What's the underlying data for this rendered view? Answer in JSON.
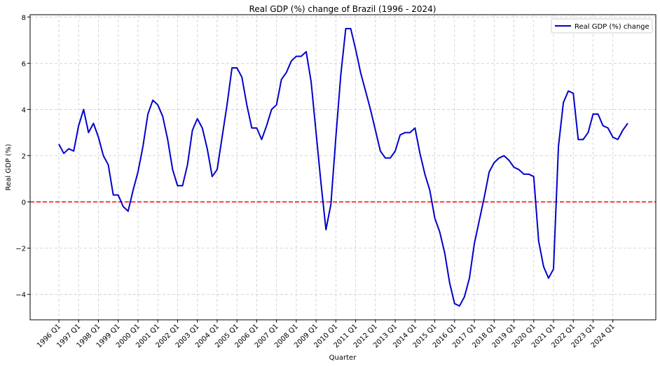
{
  "chart_data": {
    "type": "line",
    "title": "Real GDP (%) change of Brazil (1996 - 2024)",
    "xlabel": "Quarter",
    "ylabel": "Real GDP (%)",
    "ylim": [
      -5.1,
      8.1
    ],
    "yticks": [
      -4,
      -2,
      0,
      2,
      4,
      6,
      8
    ],
    "grid": true,
    "legend_position": "top-right",
    "x_tick_labels": [
      "1996 Q1",
      "1997 Q1",
      "1998 Q1",
      "1999 Q1",
      "2000 Q1",
      "2001 Q1",
      "2002 Q1",
      "2003 Q1",
      "2004 Q1",
      "2005 Q1",
      "2006 Q1",
      "2007 Q1",
      "2008 Q1",
      "2009 Q1",
      "2010 Q1",
      "2011 Q1",
      "2012 Q1",
      "2013 Q1",
      "2014 Q1",
      "2015 Q1",
      "2016 Q1",
      "2017 Q1",
      "2018 Q1",
      "2019 Q1",
      "2020 Q1",
      "2021 Q1",
      "2022 Q1",
      "2023 Q1",
      "2024 Q1"
    ],
    "reference_line": {
      "y": 0,
      "color": "#ff0000",
      "style": "dashed"
    },
    "series": [
      {
        "name": "Real GDP (%) change",
        "color": "#0000cc",
        "values": [
          2.5,
          2.1,
          2.3,
          2.2,
          3.3,
          4.0,
          3.0,
          3.4,
          2.8,
          2.0,
          1.6,
          0.3,
          0.3,
          -0.2,
          -0.4,
          0.5,
          1.3,
          2.4,
          3.8,
          4.4,
          4.2,
          3.7,
          2.7,
          1.4,
          0.7,
          0.7,
          1.6,
          3.1,
          3.6,
          3.2,
          2.3,
          1.1,
          1.4,
          2.8,
          4.2,
          5.8,
          5.8,
          5.4,
          4.2,
          3.2,
          3.2,
          2.7,
          3.3,
          4.0,
          4.2,
          5.3,
          5.6,
          6.1,
          6.3,
          6.3,
          6.5,
          5.2,
          3.0,
          0.8,
          -1.2,
          -0.1,
          2.8,
          5.5,
          7.5,
          7.5,
          6.6,
          5.6,
          4.8,
          4.0,
          3.1,
          2.2,
          1.9,
          1.9,
          2.2,
          2.9,
          3.0,
          3.0,
          3.2,
          2.1,
          1.2,
          0.5,
          -0.7,
          -1.3,
          -2.2,
          -3.5,
          -4.4,
          -4.5,
          -4.1,
          -3.3,
          -1.8,
          -0.8,
          0.2,
          1.3,
          1.7,
          1.9,
          2.0,
          1.8,
          1.5,
          1.4,
          1.2,
          1.2,
          1.1,
          -1.7,
          -2.8,
          -3.3,
          -2.9,
          2.4,
          4.3,
          4.8,
          4.7,
          2.7,
          2.7,
          3.0,
          3.8,
          3.8,
          3.3,
          3.2,
          2.8,
          2.7,
          3.1,
          3.4
        ]
      }
    ]
  }
}
